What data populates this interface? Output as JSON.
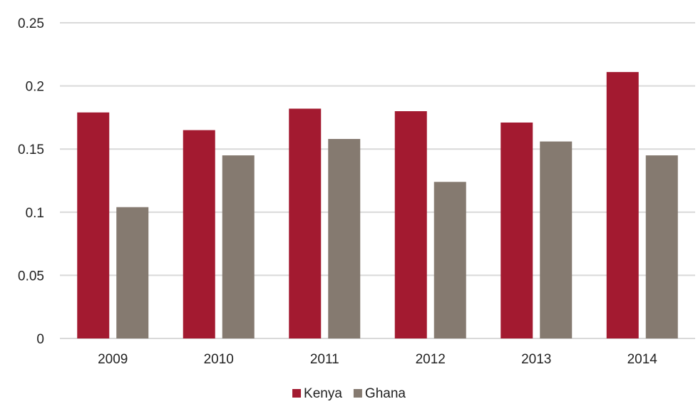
{
  "chart_data": {
    "type": "bar",
    "categories": [
      "2009",
      "2010",
      "2011",
      "2012",
      "2013",
      "2014"
    ],
    "series": [
      {
        "name": "Kenya",
        "color": "#a31a30",
        "values": [
          0.179,
          0.165,
          0.182,
          0.18,
          0.171,
          0.211
        ]
      },
      {
        "name": "Ghana",
        "color": "#857a70",
        "values": [
          0.104,
          0.145,
          0.158,
          0.124,
          0.156,
          0.145
        ]
      }
    ],
    "y_ticks": [
      "0",
      "0.05",
      "0.1",
      "0.15",
      "0.2",
      "0.25"
    ],
    "ylim": [
      0,
      0.25
    ],
    "grid": true,
    "gridline_color": "#d9d9d9",
    "legend_position": "bottom"
  }
}
